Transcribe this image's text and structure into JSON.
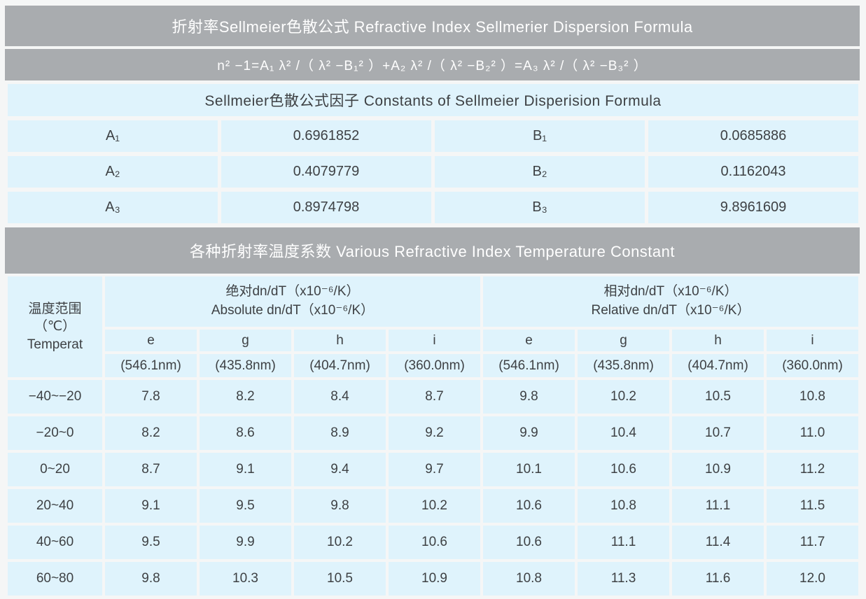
{
  "title_bar": {
    "text": "折射率Sellmeier色散公式  Refractive Index Sellmerier Dispersion Formula"
  },
  "formula_bar": {
    "text": "n² −1=A₁ λ² /（ λ² −B₁² ）+A₂ λ² /（ λ² −B₂² ）=A₃ λ² /（ λ² −B₃² ）"
  },
  "constants": {
    "title": "Sellmeier色散公式因子  Constants of Sellmeier Disperision Formula",
    "rows": [
      {
        "a_label": "A₁",
        "a_value": "0.6961852",
        "b_label": "B₁",
        "b_value": "0.0685886"
      },
      {
        "a_label": "A₂",
        "a_value": "0.4079779",
        "b_label": "B₂",
        "b_value": "0.1162043"
      },
      {
        "a_label": "A₃",
        "a_value": "0.8974798",
        "b_label": "B₃",
        "b_value": "9.8961609"
      }
    ]
  },
  "temperature": {
    "title": "各种折射率温度系数  Various Refractive Index Temperature Constant",
    "corner": {
      "line1": "温度范围",
      "line2": "（℃）",
      "line3": "Temperat"
    },
    "groups": [
      {
        "zh": "绝对dn/dT（x10⁻⁶/K）",
        "en": "Absolute dn/dT（x10⁻⁶/K）"
      },
      {
        "zh": "相对dn/dT（x10⁻⁶/K）",
        "en": "Relative dn/dT（x10⁻⁶/K）"
      }
    ],
    "lines": [
      "e",
      "g",
      "h",
      "i",
      "e",
      "g",
      "h",
      "i"
    ],
    "wavelengths": [
      "(546.1nm)",
      "(435.8nm)",
      "(404.7nm)",
      "(360.0nm)",
      "(546.1nm)",
      "(435.8nm)",
      "(404.7nm)",
      "(360.0nm)"
    ],
    "rows": [
      {
        "range": "−40~−20",
        "values": [
          "7.8",
          "8.2",
          "8.4",
          "8.7",
          "9.8",
          "10.2",
          "10.5",
          "10.8"
        ]
      },
      {
        "range": "−20~0",
        "values": [
          "8.2",
          "8.6",
          "8.9",
          "9.2",
          "9.9",
          "10.4",
          "10.7",
          "11.0"
        ]
      },
      {
        "range": "0~20",
        "values": [
          "8.7",
          "9.1",
          "9.4",
          "9.7",
          "10.1",
          "10.6",
          "10.9",
          "11.2"
        ]
      },
      {
        "range": "20~40",
        "values": [
          "9.1",
          "9.5",
          "9.8",
          "10.2",
          "10.6",
          "10.8",
          "11.1",
          "11.5"
        ]
      },
      {
        "range": "40~60",
        "values": [
          "9.5",
          "9.9",
          "10.2",
          "10.6",
          "10.6",
          "11.1",
          "11.4",
          "11.7"
        ]
      },
      {
        "range": "60~80",
        "values": [
          "9.8",
          "10.3",
          "10.5",
          "10.9",
          "10.8",
          "11.3",
          "11.6",
          "12.0"
        ]
      }
    ]
  },
  "colors": {
    "header_gray": "#a9acaf",
    "cell_blue": "#dff3fc",
    "text_dark": "#3e4144",
    "text_white": "#ffffff"
  }
}
